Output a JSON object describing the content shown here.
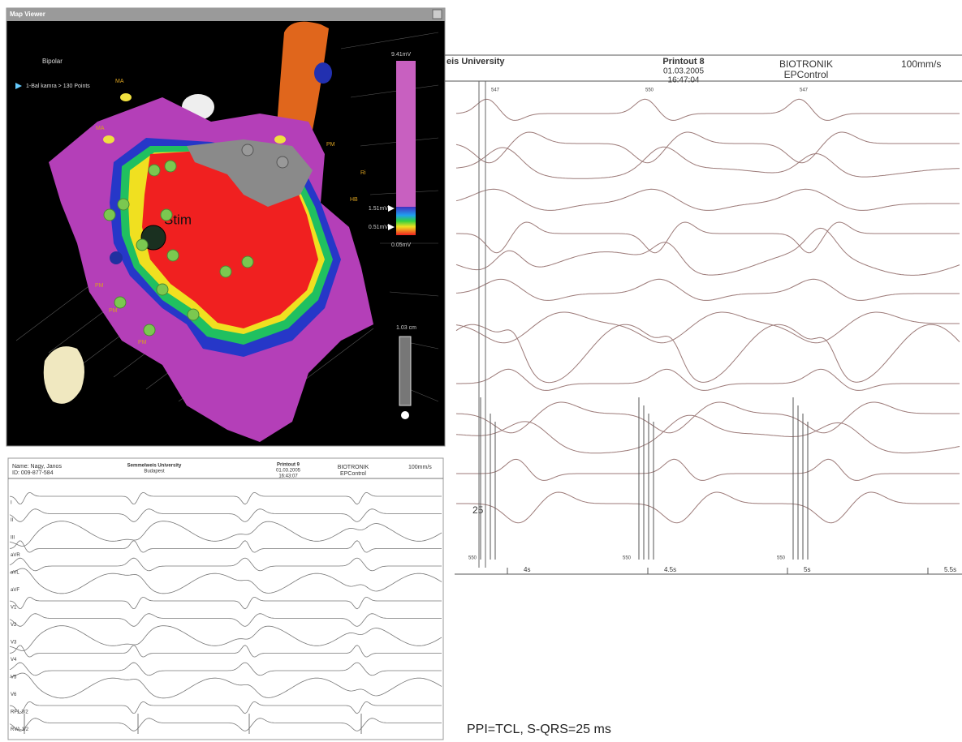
{
  "map_viewer": {
    "title": "Map Viewer",
    "mode": "Bipolar",
    "point_info": "1-Bal kamra > 130 Points",
    "labels": [
      "MA",
      "MA",
      "PM",
      "PM",
      "PM",
      "PM",
      "Ri",
      "HB"
    ],
    "stim_label": "Stim",
    "scale_max": "9.41mV",
    "scale_upper": "1.51mV",
    "scale_lower": "0.51mV",
    "scale_min": "0.05mV",
    "distance": "1.03 cm"
  },
  "printout_right": {
    "institution": "eis University",
    "printout": "Printout 8",
    "date": "01.03.2005",
    "time": "16:47:04",
    "vendor": "BIOTRONIK",
    "product": "EPControl",
    "speed": "100mm/s",
    "cycle_marks": [
      "547",
      "550",
      "547"
    ],
    "stim_marks": [
      "550",
      "550",
      "550"
    ],
    "annotation": "25",
    "time_ticks": [
      "4s",
      "4.5s",
      "5s",
      "5.5s"
    ]
  },
  "printout_left": {
    "name": "Name: Nagy, Janos",
    "id": "ID: 009-877-584",
    "institution": "Semmelweis University",
    "city": "Budapest",
    "printout": "Printout 9",
    "date": "01.03.2005",
    "time": "16:43:07",
    "vendor": "BIOTRONIK",
    "product": "EPControl",
    "speed": "100mm/s",
    "leads": [
      "I",
      "II",
      "III",
      "aVR",
      "aVL",
      "aVF",
      "V1",
      "V2",
      "V3",
      "V4",
      "V5",
      "V6",
      "RF1-3/2",
      "RVA-1/2"
    ]
  },
  "caption": "PPI=TCL, S-QRS=25 ms"
}
